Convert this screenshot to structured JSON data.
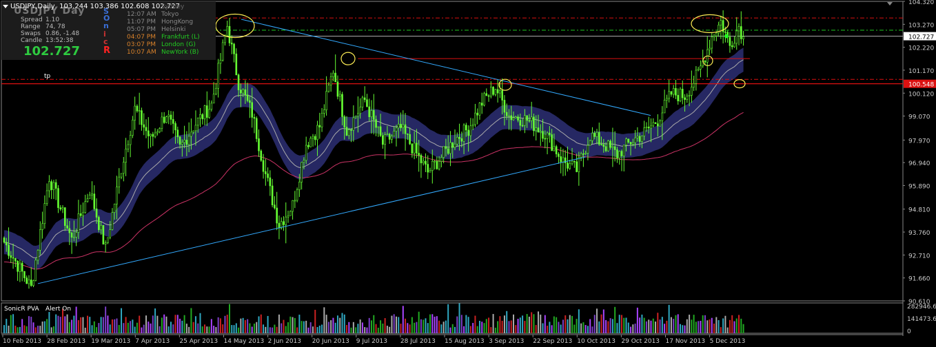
{
  "symbol_title": "USDJPY,Daily",
  "ohlc": "103.244 103.386 102.608 102.727",
  "ghost_label": "USDJPY  Day",
  "stats": [
    {
      "label": "Spread",
      "value": "1.10"
    },
    {
      "label": "Range",
      "value": "74, 78"
    },
    {
      "label": "Swaps",
      "value": "0.86, -1.48"
    },
    {
      "label": "Candle",
      "value": "13:52:38"
    }
  ],
  "big_price": "102.727",
  "vertical_letters": [
    "S",
    "O",
    "n",
    "i",
    "c",
    "R"
  ],
  "sessions": [
    {
      "time": "",
      "name": "Sydney",
      "color": "#666666"
    },
    {
      "time": "12:07 AM",
      "name": "Tokyo",
      "color": "#888888"
    },
    {
      "time": "11:07 PM",
      "name": "HongKong",
      "color": "#888888"
    },
    {
      "time": "05:07 PM",
      "name": "Helsinki",
      "color": "#888888"
    },
    {
      "time": "04:07 PM",
      "name": "Frankfurt  (L)",
      "color": "#d9822b"
    },
    {
      "time": "03:07 PM",
      "name": "London  (G)",
      "color": "#d9822b"
    },
    {
      "time": "10:07 AM",
      "name": "NewYork  (B)",
      "color": "#22cc22"
    }
  ],
  "tp_label": "tp",
  "indicator": {
    "name": "SonicR PVA",
    "alert": "Alert On",
    "axis_labels": [
      "282946.6",
      "141473.65",
      "0"
    ]
  },
  "colors": {
    "bull": "#66ff33",
    "bear": "#66ff33",
    "dragon": "#2a2c6e",
    "ema": "#cc3366",
    "trend": "#33aaff",
    "level": "#dd1111",
    "green_level": "#22cc22",
    "ellipse": "#ffee55"
  },
  "chart_data": {
    "type": "candlestick",
    "y_range": [
      90.61,
      104.32
    ],
    "price_axis_ticks": [
      "104.320",
      "103.270",
      "102.220",
      "101.170",
      "100.120",
      "99.070",
      "98.020",
      "96.970",
      "95.920",
      "94.870",
      "93.820",
      "92.770",
      "91.720",
      "90.670"
    ],
    "price_axis_labels": [
      "104.320",
      "103.270",
      "102.727",
      "102.220",
      "101.170",
      "100.548",
      "100.120",
      "99.070",
      "97.970",
      "96.940",
      "95.890",
      "94.810",
      "93.760",
      "92.710",
      "91.660",
      "90.610"
    ],
    "current_price": "102.727",
    "level_price": "100.548",
    "x_labels": [
      "10 Feb 2013",
      "28 Feb 2013",
      "19 Mar 2013",
      "7 Apr 2013",
      "25 Apr 2013",
      "14 May 2013",
      "2 Jun 2013",
      "20 Jun 2013",
      "9 Jul 2013",
      "28 Jul 2013",
      "15 Aug 2013",
      "3 Sep 2013",
      "22 Sep 2013",
      "10 Oct 2013",
      "29 Oct 2013",
      "17 Nov 2013",
      "5 Dec 2013"
    ],
    "key_closes": [
      [
        0,
        93.3
      ],
      [
        12,
        91.2
      ],
      [
        20,
        96.3
      ],
      [
        30,
        93.4
      ],
      [
        38,
        95.7
      ],
      [
        45,
        93.0
      ],
      [
        52,
        96.7
      ],
      [
        58,
        99.4
      ],
      [
        65,
        98.0
      ],
      [
        72,
        99.2
      ],
      [
        78,
        97.6
      ],
      [
        84,
        98.6
      ],
      [
        92,
        99.6
      ],
      [
        99,
        103.2
      ],
      [
        104,
        100.6
      ],
      [
        110,
        99.2
      ],
      [
        116,
        96.4
      ],
      [
        122,
        94.1
      ],
      [
        128,
        95.0
      ],
      [
        134,
        97.8
      ],
      [
        140,
        98.6
      ],
      [
        146,
        101.2
      ],
      [
        152,
        98.4
      ],
      [
        160,
        99.8
      ],
      [
        168,
        97.8
      ],
      [
        176,
        98.5
      ],
      [
        182,
        97.5
      ],
      [
        188,
        96.5
      ],
      [
        194,
        97.2
      ],
      [
        200,
        98.0
      ],
      [
        206,
        98.5
      ],
      [
        212,
        99.7
      ],
      [
        218,
        100.4
      ],
      [
        224,
        99.1
      ],
      [
        232,
        98.9
      ],
      [
        240,
        98.3
      ],
      [
        248,
        97.0
      ],
      [
        254,
        96.6
      ],
      [
        260,
        98.2
      ],
      [
        266,
        97.8
      ],
      [
        272,
        97.3
      ],
      [
        278,
        97.9
      ],
      [
        284,
        98.3
      ],
      [
        290,
        98.9
      ],
      [
        296,
        100.1
      ],
      [
        302,
        100.0
      ],
      [
        308,
        101.0
      ],
      [
        314,
        102.7
      ],
      [
        318,
        103.4
      ],
      [
        322,
        102.3
      ],
      [
        326,
        103.2
      ],
      [
        328,
        102.7
      ]
    ],
    "ellipse_prices": [
      103.2,
      101.7,
      100.5,
      103.3,
      101.6,
      100.55
    ],
    "trendline_upper_prices": [
      103.5,
      99.1
    ],
    "trendline_lower_prices": [
      91.4,
      97.2
    ],
    "hline_red_dash_price": 103.56,
    "hline_green_dash_price": 103.0,
    "hline_red_solid_prices": [
      100.55,
      101.7
    ]
  }
}
